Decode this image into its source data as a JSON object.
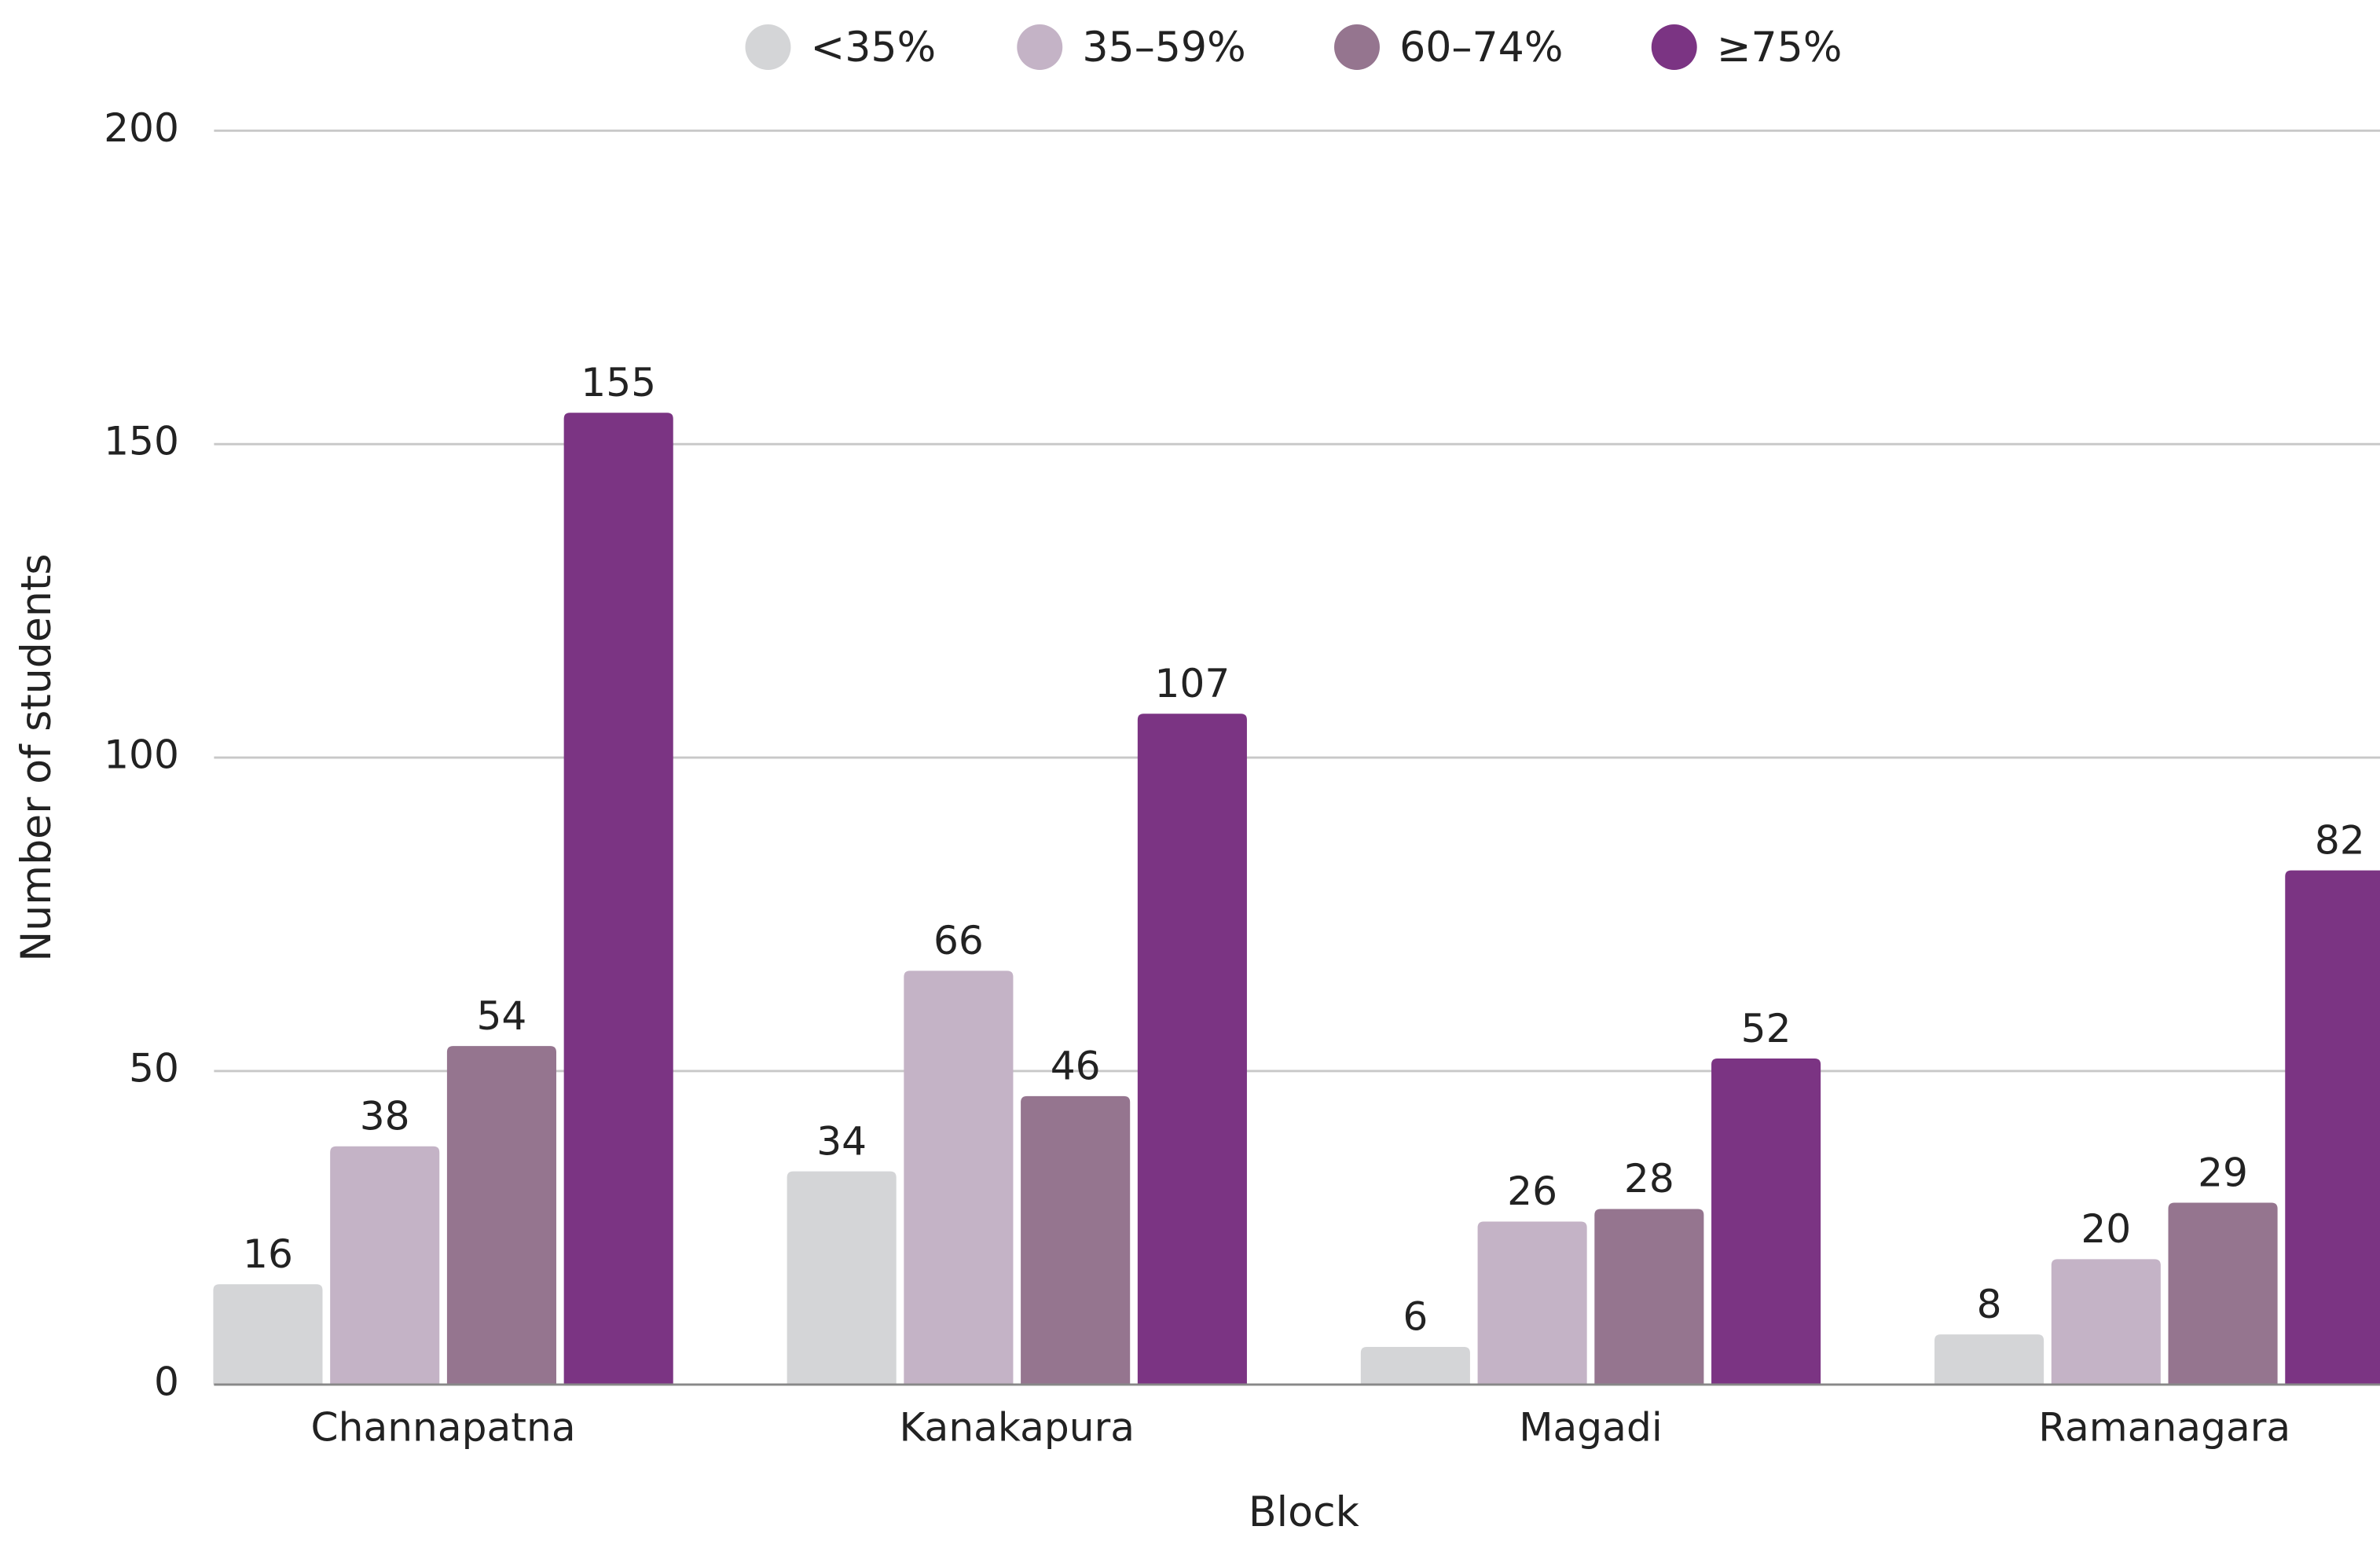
{
  "chart_data": {
    "type": "bar",
    "categories": [
      "Channapatna",
      "Kanakapura",
      "Magadi",
      "Ramanagara"
    ],
    "series": [
      {
        "name": "<35%",
        "color": "#d4d5d7",
        "values": [
          16,
          34,
          6,
          8
        ]
      },
      {
        "name": "35–59%",
        "color": "#c4b3c6",
        "values": [
          38,
          66,
          26,
          20
        ]
      },
      {
        "name": "60–74%",
        "color": "#95758f",
        "values": [
          54,
          46,
          28,
          29
        ]
      },
      {
        "name": "≥75%",
        "color": "#7b3483",
        "values": [
          155,
          107,
          52,
          82
        ]
      }
    ],
    "x_label": "Block",
    "y_label": "Number of students",
    "ylim": [
      0,
      200
    ],
    "yticks": [
      0,
      50,
      100,
      150,
      200
    ],
    "grid": true,
    "legend": "top"
  }
}
